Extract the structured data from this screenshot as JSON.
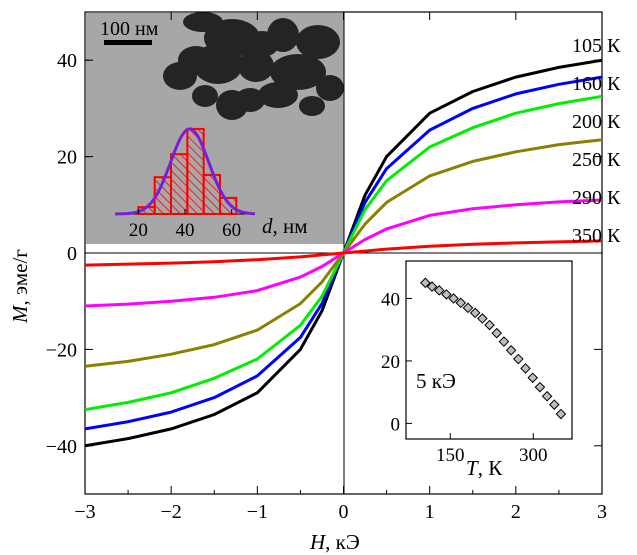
{
  "chart_data": [
    {
      "type": "line",
      "title": "",
      "xlabel_var": "H",
      "xlabel_unit": ", кЭ",
      "ylabel_var": "M",
      "ylabel_unit": ", эме/г",
      "xlim": [
        -3,
        3
      ],
      "ylim": [
        -50,
        50
      ],
      "x_ticks": [
        -3,
        -2,
        -1,
        0,
        1,
        2,
        3
      ],
      "x_tick_labels": [
        "−3",
        "−2",
        "−1",
        "0",
        "1",
        "2",
        "3"
      ],
      "y_ticks": [
        -40,
        -20,
        0,
        20,
        40
      ],
      "y_tick_labels": [
        "−40",
        "−20",
        "0",
        "20",
        "40"
      ],
      "x": [
        -3,
        -2.5,
        -2,
        -1.5,
        -1,
        -0.5,
        -0.25,
        0,
        0.25,
        0.5,
        1,
        1.5,
        2,
        2.5,
        3
      ],
      "series": [
        {
          "name": "105 К",
          "color": "#000000",
          "values": [
            -40,
            -38.5,
            -36.5,
            -33.5,
            -29,
            -20,
            -12,
            0,
            12,
            20,
            29,
            33.5,
            36.5,
            38.5,
            40
          ]
        },
        {
          "name": "160 К",
          "color": "#0000ff",
          "values": [
            -36.5,
            -35,
            -33,
            -30,
            -25.5,
            -17.5,
            -10.5,
            0,
            10.5,
            17.5,
            25.5,
            30,
            33,
            35,
            36.5
          ]
        },
        {
          "name": "200 К",
          "color": "#00ee00",
          "values": [
            -32.5,
            -31,
            -29,
            -26,
            -22,
            -15,
            -9,
            0,
            9,
            15,
            22,
            26,
            29,
            31,
            32.5
          ]
        },
        {
          "name": "250 К",
          "color": "#8b8000",
          "values": [
            -23.5,
            -22.5,
            -21,
            -19,
            -16,
            -10.5,
            -6,
            0,
            6,
            10.5,
            16,
            19,
            21,
            22.5,
            23.5
          ]
        },
        {
          "name": "290 К",
          "color": "#ff00ff",
          "values": [
            -11,
            -10.6,
            -10,
            -9.2,
            -7.8,
            -5,
            -2.8,
            0,
            2.8,
            5,
            7.8,
            9.2,
            10,
            10.6,
            11
          ]
        },
        {
          "name": "350 К",
          "color": "#ff0000",
          "values": [
            -2.5,
            -2.3,
            -2.1,
            -1.8,
            -1.4,
            -0.8,
            -0.4,
            0,
            0.4,
            0.8,
            1.4,
            1.8,
            2.1,
            2.3,
            2.5
          ]
        }
      ]
    },
    {
      "type": "bar",
      "title": "",
      "xlabel_var": "d",
      "xlabel_unit": ", нм",
      "scale_bar_label": "100 нм",
      "xlim": [
        10,
        70
      ],
      "x_ticks": [
        20,
        40,
        60
      ],
      "x_tick_labels": [
        "20",
        "40",
        "60"
      ],
      "bin_edges": [
        20,
        27,
        34,
        41,
        48,
        55,
        62
      ],
      "values": [
        1.5,
        8,
        13,
        18.5,
        8.5,
        3.5
      ],
      "fit_color": "#7a1fd6",
      "bar_color": "#ff0000",
      "fit_mean": 42,
      "fit_sigma": 8.2,
      "fit_peak": 18.5
    },
    {
      "type": "scatter",
      "title": "",
      "xlabel_var": "T",
      "xlabel_unit": ", К",
      "annotation": "5 кЭ",
      "xlim": [
        70,
        370
      ],
      "ylim": [
        -5,
        52
      ],
      "x_ticks": [
        150,
        300
      ],
      "x_tick_labels": [
        "150",
        "300"
      ],
      "y_ticks": [
        0,
        20,
        40
      ],
      "y_tick_labels": [
        "0",
        "20",
        "40"
      ],
      "x": [
        105,
        117,
        130,
        143,
        156,
        169,
        182,
        195,
        208,
        221,
        234,
        247,
        260,
        273,
        286,
        299,
        312,
        325,
        338,
        350
      ],
      "y": [
        45,
        43.8,
        42.6,
        41.3,
        40,
        38.6,
        37,
        35.4,
        33.6,
        31.5,
        28.9,
        26.2,
        23.4,
        20.6,
        17.6,
        14.6,
        11.6,
        8.7,
        6,
        3
      ]
    }
  ]
}
